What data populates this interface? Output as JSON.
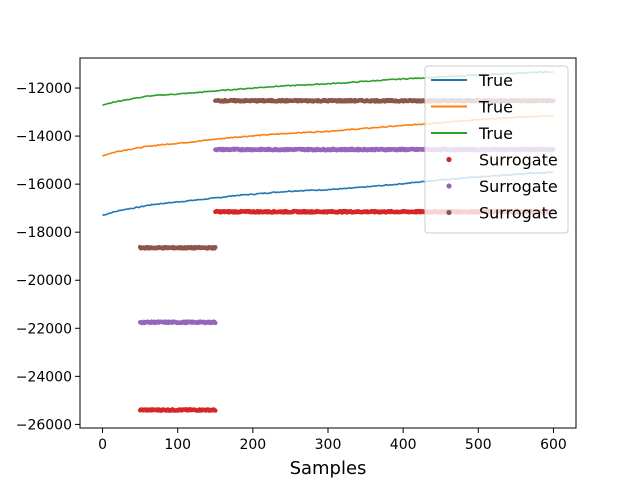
{
  "chart_data": {
    "type": "line",
    "title": "",
    "xlabel": "Samples",
    "ylabel": "",
    "xlim": [
      -30,
      630
    ],
    "ylim": [
      -26150,
      -10750
    ],
    "xticks": [
      0,
      100,
      200,
      300,
      400,
      500,
      600
    ],
    "yticks": [
      -26000,
      -24000,
      -22000,
      -20000,
      -18000,
      -16000,
      -14000,
      -12000
    ],
    "grid": false,
    "legend_position": "top-right",
    "series": [
      {
        "name": "True",
        "kind": "line",
        "color": "#1f77b4",
        "x": [
          0,
          10,
          20,
          30,
          40,
          50,
          60,
          75,
          100,
          125,
          150,
          175,
          200,
          225,
          250,
          275,
          300,
          325,
          350,
          375,
          400,
          425,
          450,
          475,
          500,
          525,
          550,
          575,
          600
        ],
        "y": [
          -17300,
          -17200,
          -17120,
          -17050,
          -17000,
          -16950,
          -16880,
          -16820,
          -16740,
          -16660,
          -16580,
          -16480,
          -16420,
          -16350,
          -16290,
          -16260,
          -16230,
          -16180,
          -16120,
          -16050,
          -15980,
          -15900,
          -15820,
          -15760,
          -15700,
          -15650,
          -15590,
          -15540,
          -15510
        ]
      },
      {
        "name": "True",
        "kind": "line",
        "color": "#ff7f0e",
        "x": [
          0,
          10,
          20,
          30,
          40,
          50,
          60,
          75,
          100,
          125,
          150,
          175,
          200,
          225,
          250,
          275,
          300,
          325,
          350,
          375,
          400,
          425,
          450,
          475,
          500,
          525,
          550,
          575,
          600
        ],
        "y": [
          -14820,
          -14720,
          -14640,
          -14580,
          -14530,
          -14480,
          -14430,
          -14370,
          -14300,
          -14220,
          -14130,
          -14050,
          -13990,
          -13930,
          -13880,
          -13840,
          -13800,
          -13740,
          -13680,
          -13620,
          -13560,
          -13500,
          -13440,
          -13380,
          -13320,
          -13270,
          -13220,
          -13180,
          -13150
        ]
      },
      {
        "name": "True",
        "kind": "line",
        "color": "#2ca02c",
        "x": [
          0,
          10,
          20,
          30,
          40,
          50,
          60,
          75,
          100,
          125,
          150,
          175,
          200,
          225,
          250,
          275,
          300,
          325,
          350,
          375,
          400,
          425,
          450,
          475,
          500,
          525,
          550,
          575,
          600
        ],
        "y": [
          -12700,
          -12620,
          -12560,
          -12500,
          -12440,
          -12390,
          -12340,
          -12300,
          -12250,
          -12190,
          -12120,
          -12060,
          -12000,
          -11940,
          -11900,
          -11860,
          -11820,
          -11780,
          -11720,
          -11670,
          -11620,
          -11580,
          -11540,
          -11500,
          -11460,
          -11420,
          -11380,
          -11350,
          -11330
        ]
      },
      {
        "name": "Surrogate",
        "kind": "dots",
        "color": "#d62728",
        "segments": [
          {
            "x": [
              50,
              150
            ],
            "y": -25400
          },
          {
            "x": [
              150,
              600
            ],
            "y": -17150
          }
        ]
      },
      {
        "name": "Surrogate",
        "kind": "dots",
        "color": "#9467bd",
        "segments": [
          {
            "x": [
              50,
              150
            ],
            "y": -21750
          },
          {
            "x": [
              150,
              600
            ],
            "y": -14560
          }
        ]
      },
      {
        "name": "Surrogate",
        "kind": "dots",
        "color": "#8c564b",
        "segments": [
          {
            "x": [
              50,
              150
            ],
            "y": -18650
          },
          {
            "x": [
              150,
              600
            ],
            "y": -12530
          }
        ]
      }
    ]
  }
}
